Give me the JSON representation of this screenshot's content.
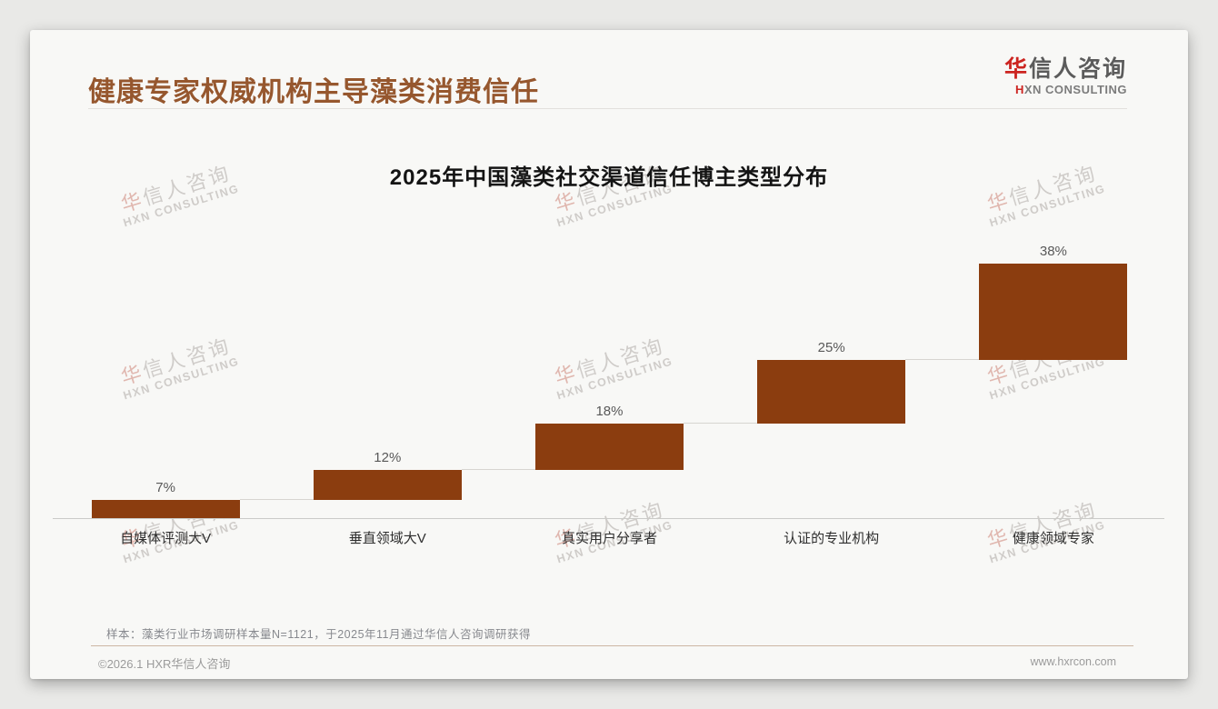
{
  "page": {
    "title": "健康专家权威机构主导藻类消费信任",
    "logo": {
      "cn_first": "华",
      "cn_rest": "信人咨询",
      "en_first": "H",
      "en_rest": "XN CONSULTING"
    },
    "watermark": {
      "cn": "华信人咨询",
      "en": "HXN CONSULTING"
    },
    "footnote": "样本：藻类行业市场调研样本量N=1121，于2025年11月通过华信人咨询调研获得",
    "footer": {
      "copyright": "©2026.1 HXR华信人咨询",
      "url": "www.hxrcon.com"
    }
  },
  "chart_data": {
    "type": "bar",
    "subtype": "waterfall-step",
    "title": "2025年中国藻类社交渠道信任博主类型分布",
    "categories": [
      "自媒体评测大V",
      "垂直领域大V",
      "真实用户分享者",
      "认证的专业机构",
      "健康领域专家"
    ],
    "values": [
      7,
      12,
      18,
      25,
      38
    ],
    "labels": [
      "7%",
      "12%",
      "18%",
      "25%",
      "38%"
    ],
    "cumulative_start": [
      0,
      7,
      19,
      37,
      62
    ],
    "ylim": [
      0,
      100
    ],
    "xlabel": "",
    "ylabel": "",
    "grid": false,
    "legend": false,
    "bar_color": "#8B3D0F",
    "connector_color": "#d7d5d1",
    "value_label_color": "#595959"
  },
  "colors": {
    "page_background": "#e9e9e7",
    "card_background": "#f8f8f6",
    "title_text": "#96572E",
    "logo_accent_red": "#cc2420",
    "footer_divider": "#ccb6a4"
  }
}
